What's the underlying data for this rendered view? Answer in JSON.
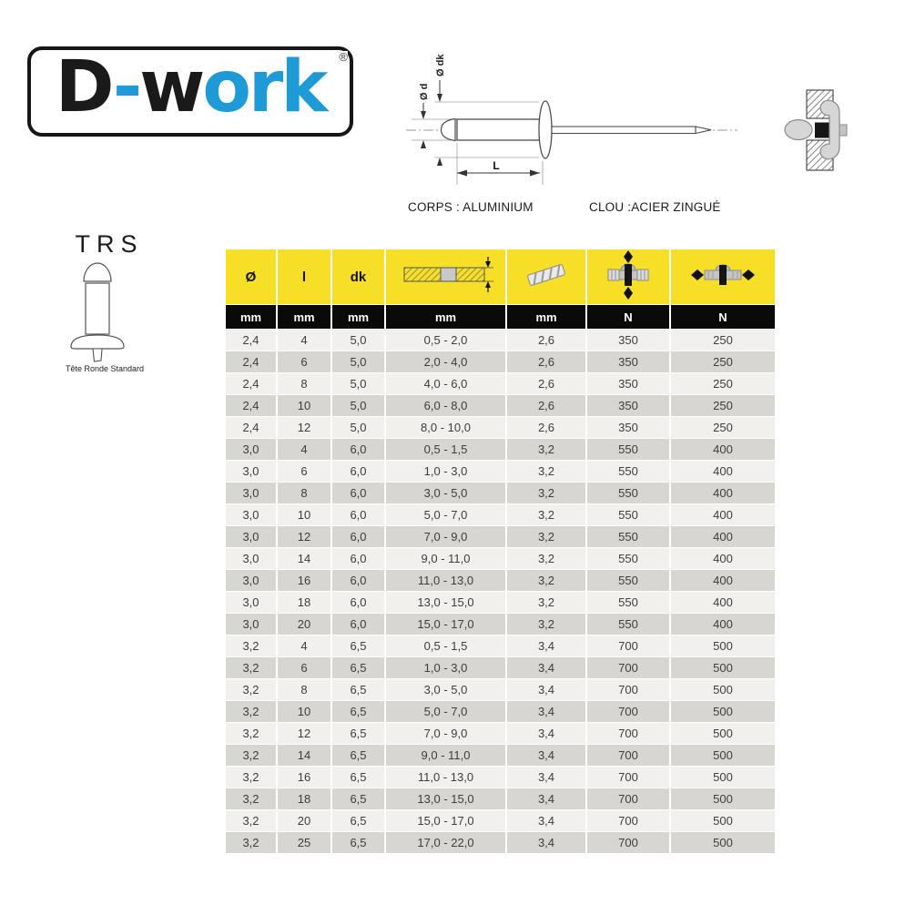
{
  "logo": {
    "part1_black": "D",
    "part2_blue": "-",
    "part3_black": "w",
    "part4_blue": "ork",
    "registered": "®",
    "blue_color": "#1E9BD7",
    "black_color": "#1A1A1A"
  },
  "diagram": {
    "label_body_diameter": "Ø d",
    "label_head_diameter": "Ø dk",
    "label_length": "L",
    "material_body": "CORPS : ALUMINIUM",
    "material_mandrel": "CLOU :ACIER ZINGUÉ"
  },
  "product": {
    "code": "TRS",
    "head_type": "Tête Ronde Standard"
  },
  "table": {
    "colors": {
      "header_yellow": "#F6DF26",
      "header_black": "#0A0A0A",
      "row_light": "#F1F0EE",
      "row_dark": "#D7D6D3"
    },
    "columns": [
      {
        "label": "Ø",
        "unit": "mm",
        "icon": ""
      },
      {
        "label": "l",
        "unit": "mm",
        "icon": ""
      },
      {
        "label": "dk",
        "unit": "mm",
        "icon": ""
      },
      {
        "label": "",
        "unit": "mm",
        "icon": "grip-range-icon"
      },
      {
        "label": "",
        "unit": "mm",
        "icon": "drill-bit-icon"
      },
      {
        "label": "",
        "unit": "N",
        "icon": "shear-strength-icon"
      },
      {
        "label": "",
        "unit": "N",
        "icon": "tensile-strength-icon"
      }
    ],
    "rows": [
      [
        "2,4",
        "4",
        "5,0",
        "0,5 - 2,0",
        "2,6",
        "350",
        "250"
      ],
      [
        "2,4",
        "6",
        "5,0",
        "2,0 - 4,0",
        "2,6",
        "350",
        "250"
      ],
      [
        "2,4",
        "8",
        "5,0",
        "4,0 - 6,0",
        "2,6",
        "350",
        "250"
      ],
      [
        "2,4",
        "10",
        "5,0",
        "6,0 - 8,0",
        "2,6",
        "350",
        "250"
      ],
      [
        "2,4",
        "12",
        "5,0",
        "8,0 - 10,0",
        "2,6",
        "350",
        "250"
      ],
      [
        "3,0",
        "4",
        "6,0",
        "0,5 - 1,5",
        "3,2",
        "550",
        "400"
      ],
      [
        "3,0",
        "6",
        "6,0",
        "1,0 - 3,0",
        "3,2",
        "550",
        "400"
      ],
      [
        "3,0",
        "8",
        "6,0",
        "3,0 - 5,0",
        "3,2",
        "550",
        "400"
      ],
      [
        "3,0",
        "10",
        "6,0",
        "5,0 - 7,0",
        "3,2",
        "550",
        "400"
      ],
      [
        "3,0",
        "12",
        "6,0",
        "7,0 - 9,0",
        "3,2",
        "550",
        "400"
      ],
      [
        "3,0",
        "14",
        "6,0",
        "9,0 - 11,0",
        "3,2",
        "550",
        "400"
      ],
      [
        "3,0",
        "16",
        "6,0",
        "11,0 - 13,0",
        "3,2",
        "550",
        "400"
      ],
      [
        "3,0",
        "18",
        "6,0",
        "13,0 - 15,0",
        "3,2",
        "550",
        "400"
      ],
      [
        "3,0",
        "20",
        "6,0",
        "15,0 - 17,0",
        "3,2",
        "550",
        "400"
      ],
      [
        "3,2",
        "4",
        "6,5",
        "0,5 - 1,5",
        "3,4",
        "700",
        "500"
      ],
      [
        "3,2",
        "6",
        "6,5",
        "1,0 - 3,0",
        "3,4",
        "700",
        "500"
      ],
      [
        "3,2",
        "8",
        "6,5",
        "3,0 - 5,0",
        "3,4",
        "700",
        "500"
      ],
      [
        "3,2",
        "10",
        "6,5",
        "5,0 - 7,0",
        "3,4",
        "700",
        "500"
      ],
      [
        "3,2",
        "12",
        "6,5",
        "7,0 - 9,0",
        "3,4",
        "700",
        "500"
      ],
      [
        "3,2",
        "14",
        "6,5",
        "9,0 - 11,0",
        "3,4",
        "700",
        "500"
      ],
      [
        "3,2",
        "16",
        "6,5",
        "11,0 - 13,0",
        "3,4",
        "700",
        "500"
      ],
      [
        "3,2",
        "18",
        "6,5",
        "13,0 - 15,0",
        "3,4",
        "700",
        "500"
      ],
      [
        "3,2",
        "20",
        "6,5",
        "15,0 - 17,0",
        "3,4",
        "700",
        "500"
      ],
      [
        "3,2",
        "25",
        "6,5",
        "17,0 - 22,0",
        "3,4",
        "700",
        "500"
      ]
    ]
  }
}
